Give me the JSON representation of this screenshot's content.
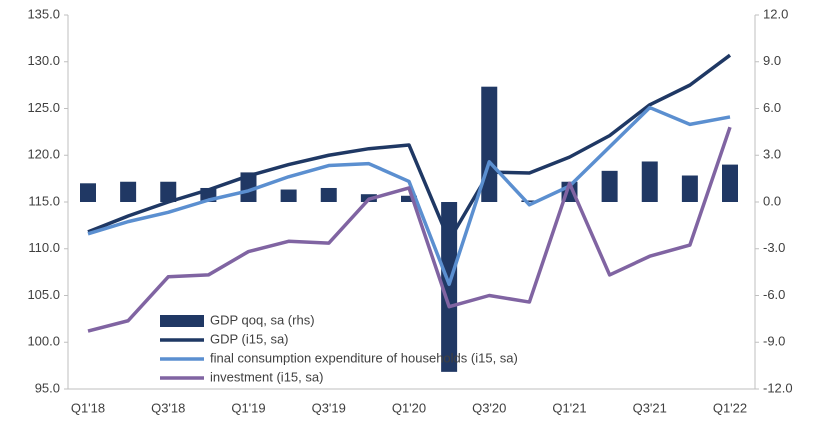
{
  "chart_data": {
    "type": "combo",
    "categories": [
      "Q1'18",
      null,
      "Q3'18",
      null,
      "Q1'19",
      null,
      "Q3'19",
      null,
      "Q1'20",
      null,
      "Q3'20",
      null,
      "Q1'21",
      null,
      "Q3'21",
      null,
      "Q1'22"
    ],
    "series": [
      {
        "name": "GDP qoq, sa (rhs)",
        "type": "bar",
        "axis": "y2",
        "color": "#203864",
        "values": [
          1.2,
          1.3,
          1.3,
          0.9,
          1.9,
          0.8,
          0.9,
          0.5,
          0.4,
          -10.9,
          7.4,
          0.1,
          1.3,
          2.0,
          2.6,
          1.7,
          2.4
        ]
      },
      {
        "name": "GDP (i15, sa)",
        "type": "line",
        "color": "#1f3864",
        "values": [
          111.8,
          113.5,
          115.0,
          116.3,
          117.8,
          119.0,
          120.0,
          120.7,
          121.1,
          110.9,
          118.2,
          118.1,
          119.8,
          122.1,
          125.4,
          127.5,
          130.7
        ]
      },
      {
        "name": "final consumption expenditure of households (i15, sa)",
        "type": "line",
        "color": "#5b8fd0",
        "values": [
          111.6,
          112.9,
          113.9,
          115.2,
          116.2,
          117.7,
          118.9,
          119.1,
          117.2,
          106.2,
          119.3,
          114.7,
          116.7,
          120.9,
          125.1,
          123.3,
          124.1
        ]
      },
      {
        "name": "investment (i15, sa)",
        "type": "line",
        "color": "#8064a2",
        "values": [
          101.2,
          102.3,
          107.0,
          107.2,
          109.7,
          110.8,
          110.6,
          115.3,
          116.5,
          103.8,
          105.0,
          104.3,
          117.0,
          107.2,
          109.2,
          110.4,
          123.0
        ]
      }
    ],
    "ylim": [
      95,
      135
    ],
    "yticks": [
      {
        "value": 95,
        "label": "95.0"
      },
      {
        "value": 100,
        "label": "100.0"
      },
      {
        "value": 105,
        "label": "105.0"
      },
      {
        "value": 110,
        "label": "110.0"
      },
      {
        "value": 115,
        "label": "115.0"
      },
      {
        "value": 120,
        "label": "120.0"
      },
      {
        "value": 125,
        "label": "125.0"
      },
      {
        "value": 130,
        "label": "130.0"
      },
      {
        "value": 135,
        "label": "135.0"
      }
    ],
    "y2lim": [
      -12,
      12
    ],
    "y2ticks": [
      {
        "value": -12,
        "label": "-12.0"
      },
      {
        "value": -9,
        "label": "-9.0"
      },
      {
        "value": -6,
        "label": "-6.0"
      },
      {
        "value": -3,
        "label": "-3.0"
      },
      {
        "value": 0,
        "label": "0.0"
      },
      {
        "value": 3,
        "label": "3.0"
      },
      {
        "value": 6,
        "label": "6.0"
      },
      {
        "value": 9,
        "label": "9.0"
      },
      {
        "value": 12,
        "label": "12.0"
      }
    ],
    "legend": "lower left"
  }
}
